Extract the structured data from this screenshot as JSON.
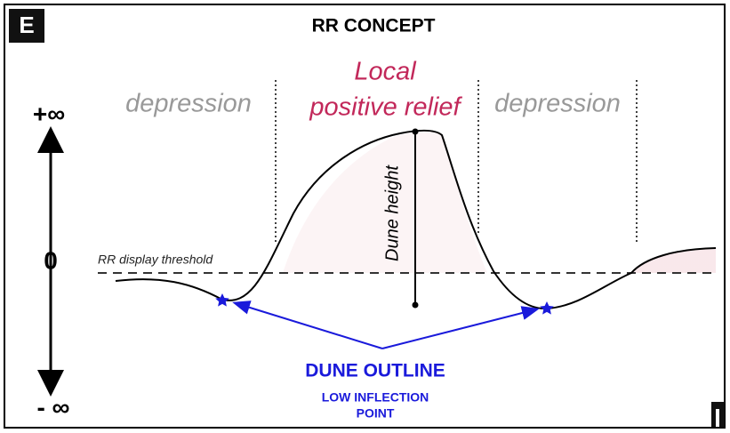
{
  "panel_label": "E",
  "title": "RR CONCEPT",
  "axis": {
    "top": "+∞",
    "middle": "0",
    "bottom": "- ∞"
  },
  "regions": {
    "left": "depression",
    "center": [
      "Local",
      "positive relief"
    ],
    "right": "depression"
  },
  "threshold_label": "RR display threshold",
  "height_label": "Dune height",
  "outline": {
    "title": "DUNE OUTLINE",
    "subtitle": [
      "LOW INFLECTION",
      "POINT"
    ]
  }
}
